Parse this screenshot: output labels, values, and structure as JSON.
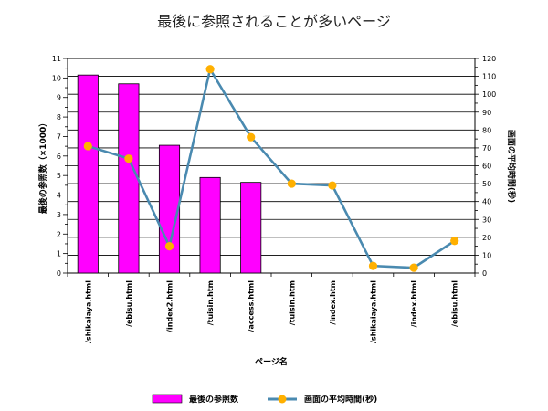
{
  "chart_data": {
    "type": "bar+line",
    "title": "最後に参照されることが多いページ",
    "xlabel": "ページ名",
    "y1label": "最後の参照数（×1000）",
    "y2label": "画面の平均時間(秒)",
    "categories": [
      "/shikaiaya.html",
      "/ebisu.html",
      "/index2.html",
      "/tuisin.htm",
      "/access.html",
      "/tuisin.htm",
      "/index.htm",
      "/shikaiaya.html",
      "/index.html",
      "/ebisu.html"
    ],
    "y1lim": [
      0,
      11
    ],
    "y2lim": [
      0,
      120
    ],
    "y1_ticks": [
      0,
      1,
      2,
      3,
      4,
      5,
      6,
      7,
      8,
      9,
      10,
      11
    ],
    "y2_ticks": [
      0,
      10,
      20,
      30,
      40,
      50,
      60,
      70,
      80,
      90,
      100,
      110,
      120
    ],
    "grid": true,
    "legend_position": "bottom",
    "series": [
      {
        "name": "最後の参照数",
        "type": "bar",
        "axis": "left",
        "color": "#ff00ff",
        "values": [
          10.15,
          9.7,
          6.55,
          4.9,
          4.65,
          null,
          null,
          null,
          null,
          null
        ]
      },
      {
        "name": "画面の平均時間(秒)",
        "type": "line",
        "axis": "right",
        "color": "#4a8ab0",
        "marker_color": "#ffb000",
        "values": [
          71,
          64,
          15,
          114,
          76,
          50,
          49,
          4,
          3,
          18
        ]
      }
    ]
  }
}
